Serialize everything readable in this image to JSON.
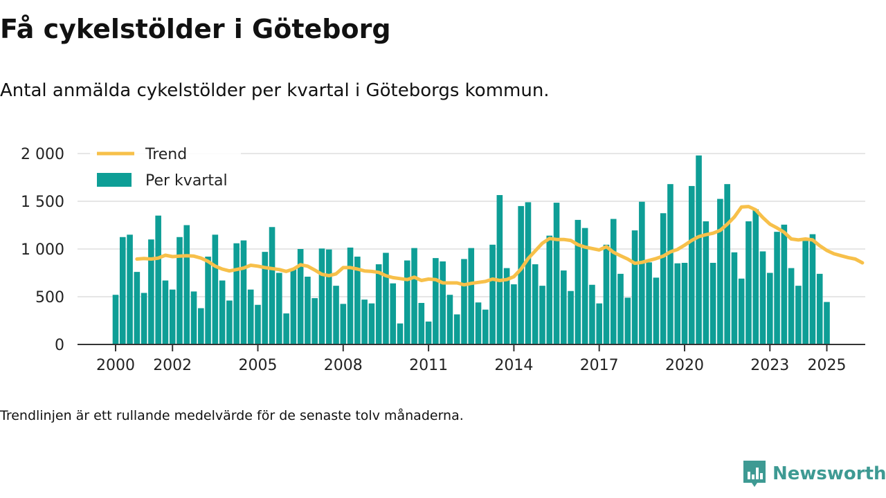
{
  "title": "Få cykelstölder i Göteborg",
  "subtitle": "Antal anmälda cykelstölder per kvartal i Göteborgs kommun.",
  "footnote": "Trendlinjen är ett rullande medelvärde för de senaste tolv månaderna.",
  "brand": {
    "name": "Newsworthy",
    "icon": "newsworthy-logo-icon",
    "color": "#3e9a93"
  },
  "chart_data": {
    "type": "bar",
    "title": "",
    "xlabel": "",
    "ylabel": "",
    "ylim": [
      0,
      2000
    ],
    "yticks": [
      0,
      500,
      1000,
      1500,
      2000
    ],
    "ytick_labels": [
      "0",
      "500",
      "1 000",
      "1 500",
      "2 000"
    ],
    "xticks": [
      2000,
      2002,
      2005,
      2008,
      2011,
      2014,
      2017,
      2020,
      2023,
      2025
    ],
    "xtick_labels": [
      "2000",
      "2002",
      "2005",
      "2008",
      "2011",
      "2014",
      "2017",
      "2020",
      "2023",
      "2025"
    ],
    "grid": true,
    "legend": {
      "position": "top-left"
    },
    "colors": {
      "bars": "#0e9e96",
      "trend": "#f7c04a",
      "grid": "#dddddd",
      "axis": "#333333"
    },
    "series": [
      {
        "name": "Per kvartal",
        "kind": "bar",
        "start_year": 2000,
        "values": [
          520,
          1125,
          1150,
          760,
          540,
          1100,
          1350,
          670,
          575,
          1125,
          1250,
          555,
          380,
          920,
          1150,
          670,
          460,
          1060,
          1090,
          575,
          415,
          970,
          1230,
          750,
          325,
          790,
          1000,
          710,
          485,
          1005,
          995,
          615,
          425,
          1015,
          920,
          470,
          430,
          840,
          960,
          640,
          220,
          880,
          1010,
          435,
          240,
          905,
          870,
          520,
          315,
          895,
          1010,
          440,
          365,
          1045,
          1565,
          800,
          630,
          1450,
          1490,
          840,
          615,
          1140,
          1485,
          775,
          560,
          1305,
          1220,
          625,
          430,
          1045,
          1315,
          740,
          490,
          1195,
          1495,
          860,
          700,
          1375,
          1680,
          850,
          855,
          1660,
          1980,
          1290,
          855,
          1525,
          1680,
          965,
          690,
          1290,
          1415,
          975,
          750,
          1180,
          1255,
          800,
          615,
          1085,
          1155,
          740,
          445
        ]
      },
      {
        "name": "Trend",
        "kind": "line",
        "start_year": 2000.75,
        "values": [
          895,
          900,
          895,
          905,
          935,
          920,
          925,
          930,
          925,
          905,
          870,
          820,
          790,
          770,
          785,
          800,
          830,
          820,
          805,
          795,
          785,
          765,
          790,
          835,
          820,
          780,
          735,
          720,
          740,
          805,
          805,
          790,
          770,
          765,
          755,
          720,
          700,
          690,
          680,
          705,
          670,
          685,
          680,
          645,
          645,
          645,
          625,
          640,
          650,
          660,
          685,
          670,
          680,
          710,
          790,
          900,
          980,
          1060,
          1110,
          1100,
          1100,
          1090,
          1045,
          1020,
          1005,
          990,
          1025,
          965,
          930,
          895,
          850,
          860,
          880,
          900,
          925,
          970,
          995,
          1040,
          1090,
          1130,
          1150,
          1165,
          1195,
          1260,
          1335,
          1440,
          1445,
          1410,
          1330,
          1260,
          1220,
          1175,
          1105,
          1095,
          1105,
          1095,
          1035,
          985,
          950,
          930,
          910,
          895,
          855
        ]
      }
    ]
  }
}
